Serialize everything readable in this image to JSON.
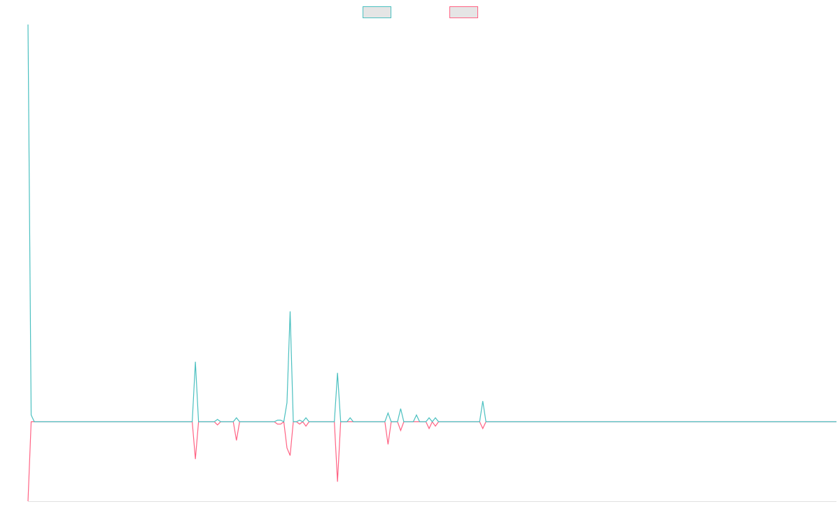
{
  "chart_data": {
    "type": "line",
    "x": [
      0,
      1,
      2,
      52,
      53,
      54,
      59,
      60,
      61,
      65,
      66,
      67,
      78,
      79,
      80,
      81,
      82,
      83,
      84,
      85,
      86,
      87,
      88,
      89,
      97,
      98,
      99,
      101,
      102,
      103,
      113,
      114,
      115,
      117,
      118,
      119,
      122,
      123,
      124,
      126,
      127,
      128,
      129,
      130,
      143,
      144,
      145,
      256
    ],
    "xlim": [
      0,
      256
    ],
    "ylim": [
      -20,
      100
    ],
    "legend": "top",
    "series": [
      {
        "color": "#4bc0c0",
        "values": [
          100,
          1.7,
          0,
          0,
          15.1,
          0,
          0,
          0.6,
          0,
          0,
          1,
          0,
          0,
          0.4,
          0.4,
          0,
          4.8,
          27.8,
          0,
          0,
          0.4,
          0,
          1,
          0,
          0,
          12.3,
          0,
          0,
          1,
          0,
          0,
          2.2,
          0,
          0,
          3.3,
          0,
          0,
          1.7,
          0,
          0,
          1,
          0,
          1,
          0,
          0,
          5.2,
          0,
          0
        ]
      },
      {
        "color": "#ff6384",
        "values": [
          -20,
          0,
          0,
          0,
          -9.4,
          0,
          0,
          -0.8,
          0,
          0,
          -4.7,
          0,
          0,
          -0.6,
          -0.6,
          0,
          -6.6,
          -8.5,
          0,
          0,
          -0.6,
          0,
          -1.1,
          0,
          0,
          -15.1,
          0,
          0,
          0,
          0,
          0,
          -5.7,
          0,
          0,
          -2.2,
          0,
          0,
          0,
          0,
          0,
          -1.7,
          0,
          -1.1,
          0,
          0,
          -1.7,
          0,
          0
        ]
      }
    ]
  }
}
